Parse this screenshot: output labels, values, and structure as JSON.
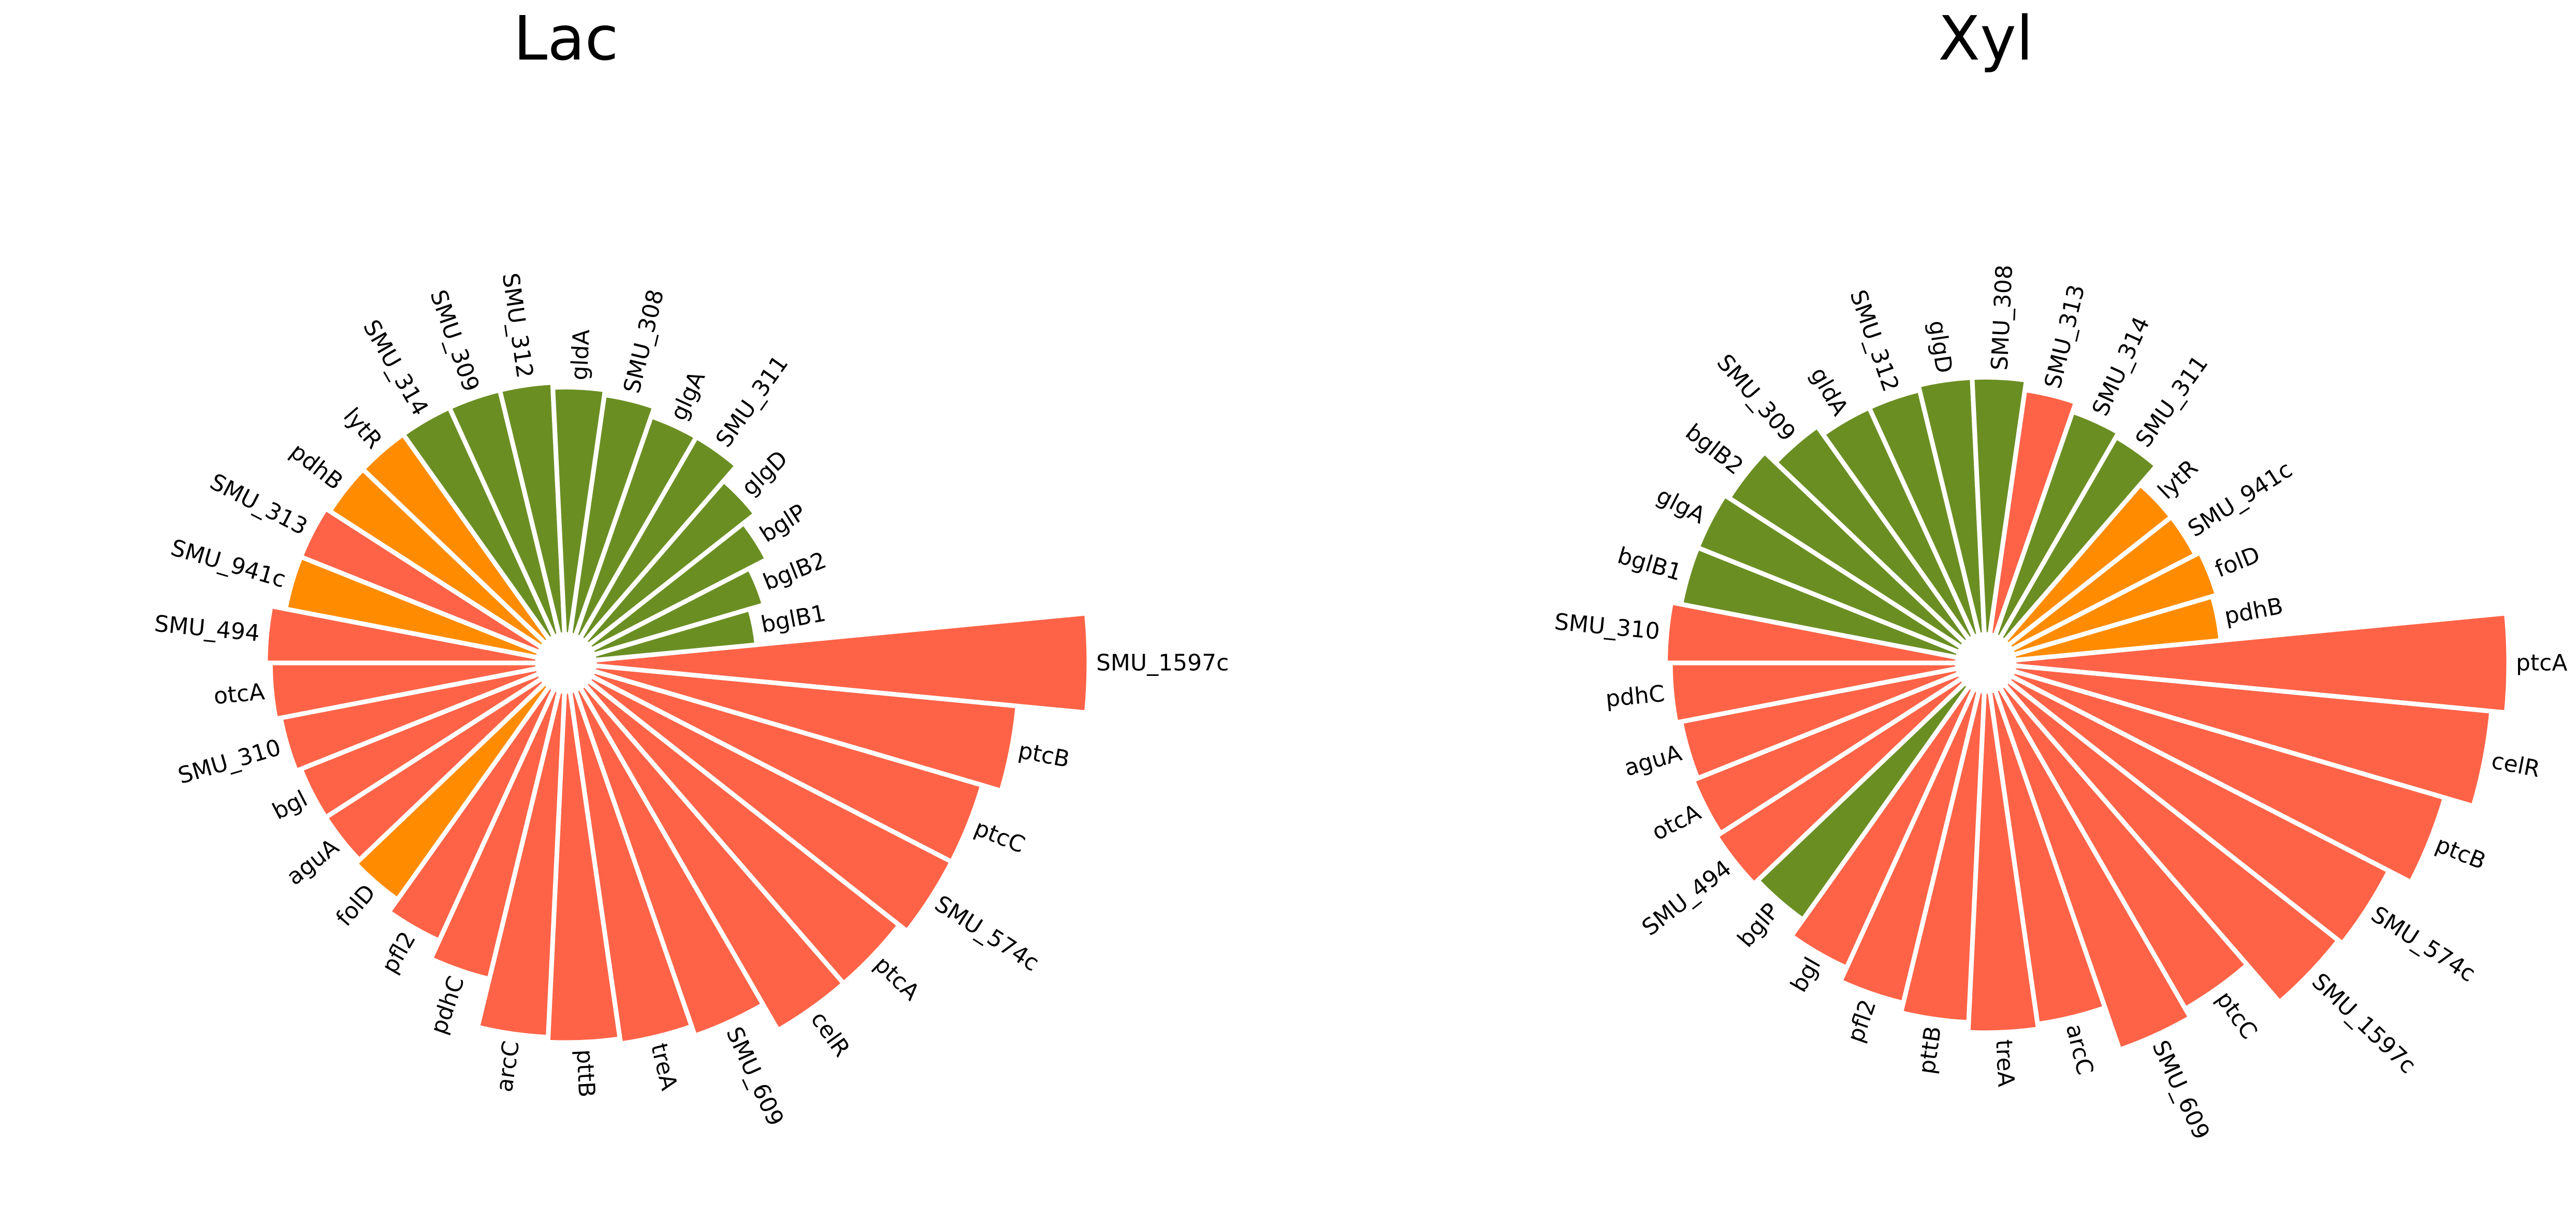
{
  "colors": {
    "red": "#FF6347",
    "orange": "#FF8C00",
    "green": "#6B8E23"
  },
  "chart_data": [
    {
      "type": "bar",
      "polar": true,
      "title": "Lac",
      "bars": [
        {
          "label": "SMU_1597c",
          "value": 1.0,
          "color": "red"
        },
        {
          "label": "ptcB",
          "value": 0.86,
          "color": "red"
        },
        {
          "label": "ptcC",
          "value": 0.82,
          "color": "red"
        },
        {
          "label": "SMU_574c",
          "value": 0.82,
          "color": "red"
        },
        {
          "label": "ptcA",
          "value": 0.8,
          "color": "red"
        },
        {
          "label": "celR",
          "value": 0.8,
          "color": "red"
        },
        {
          "label": "SMU_609",
          "value": 0.74,
          "color": "red"
        },
        {
          "label": "treA",
          "value": 0.72,
          "color": "red"
        },
        {
          "label": "pttB",
          "value": 0.71,
          "color": "red"
        },
        {
          "label": "arcC",
          "value": 0.7,
          "color": "red"
        },
        {
          "label": "pdhC",
          "value": 0.6,
          "color": "red"
        },
        {
          "label": "pfl2",
          "value": 0.56,
          "color": "red"
        },
        {
          "label": "folD",
          "value": 0.53,
          "color": "orange"
        },
        {
          "label": "aguA",
          "value": 0.52,
          "color": "red"
        },
        {
          "label": "bgl",
          "value": 0.52,
          "color": "red"
        },
        {
          "label": "SMU_310",
          "value": 0.53,
          "color": "red"
        },
        {
          "label": "otcA",
          "value": 0.54,
          "color": "red"
        },
        {
          "label": "SMU_494",
          "value": 0.55,
          "color": "red"
        },
        {
          "label": "SMU_941c",
          "value": 0.52,
          "color": "orange"
        },
        {
          "label": "SMU_313",
          "value": 0.52,
          "color": "red"
        },
        {
          "label": "pdhB",
          "value": 0.51,
          "color": "orange"
        },
        {
          "label": "lytR",
          "value": 0.51,
          "color": "orange"
        },
        {
          "label": "SMU_314",
          "value": 0.51,
          "color": "green"
        },
        {
          "label": "SMU_309",
          "value": 0.51,
          "color": "green"
        },
        {
          "label": "SMU_312",
          "value": 0.51,
          "color": "green"
        },
        {
          "label": "gldA",
          "value": 0.5,
          "color": "green"
        },
        {
          "label": "SMU_308",
          "value": 0.49,
          "color": "green"
        },
        {
          "label": "glgA",
          "value": 0.47,
          "color": "green"
        },
        {
          "label": "SMU_311",
          "value": 0.47,
          "color": "green"
        },
        {
          "label": "glgD",
          "value": 0.43,
          "color": "green"
        },
        {
          "label": "bglP",
          "value": 0.4,
          "color": "green"
        },
        {
          "label": "bglB2",
          "value": 0.36,
          "color": "green"
        },
        {
          "label": "bglB1",
          "value": 0.33,
          "color": "green"
        }
      ]
    },
    {
      "type": "bar",
      "polar": true,
      "title": "Xyl",
      "bars": [
        {
          "label": "ptcA",
          "value": 1.0,
          "color": "red"
        },
        {
          "label": "celR",
          "value": 0.97,
          "color": "red"
        },
        {
          "label": "ptcB",
          "value": 0.91,
          "color": "red"
        },
        {
          "label": "SMU_574c",
          "value": 0.86,
          "color": "red"
        },
        {
          "label": "SMU_1597c",
          "value": 0.85,
          "color": "red"
        },
        {
          "label": "ptcC",
          "value": 0.75,
          "color": "red"
        },
        {
          "label": "SMU_609",
          "value": 0.77,
          "color": "red"
        },
        {
          "label": "arcC",
          "value": 0.68,
          "color": "red"
        },
        {
          "label": "treA",
          "value": 0.69,
          "color": "red"
        },
        {
          "label": "pttB",
          "value": 0.67,
          "color": "red"
        },
        {
          "label": "pfl2",
          "value": 0.65,
          "color": "red"
        },
        {
          "label": "bgl",
          "value": 0.62,
          "color": "red"
        },
        {
          "label": "bglP",
          "value": 0.58,
          "color": "green"
        },
        {
          "label": "SMU_494",
          "value": 0.59,
          "color": "red"
        },
        {
          "label": "otcA",
          "value": 0.58,
          "color": "red"
        },
        {
          "label": "aguA",
          "value": 0.57,
          "color": "red"
        },
        {
          "label": "pdhC",
          "value": 0.58,
          "color": "red"
        },
        {
          "label": "SMU_310",
          "value": 0.59,
          "color": "red"
        },
        {
          "label": "bglB1",
          "value": 0.57,
          "color": "green"
        },
        {
          "label": "glgA",
          "value": 0.57,
          "color": "green"
        },
        {
          "label": "bglB2",
          "value": 0.56,
          "color": "green"
        },
        {
          "label": "SMU_309",
          "value": 0.53,
          "color": "green"
        },
        {
          "label": "gldA",
          "value": 0.51,
          "color": "green"
        },
        {
          "label": "SMU_312",
          "value": 0.51,
          "color": "green"
        },
        {
          "label": "glgD",
          "value": 0.52,
          "color": "green"
        },
        {
          "label": "SMU_308",
          "value": 0.52,
          "color": "green"
        },
        {
          "label": "SMU_313",
          "value": 0.5,
          "color": "red"
        },
        {
          "label": "SMU_314",
          "value": 0.48,
          "color": "green"
        },
        {
          "label": "SMU_311",
          "value": 0.47,
          "color": "green"
        },
        {
          "label": "lytR",
          "value": 0.42,
          "color": "orange"
        },
        {
          "label": "SMU_941c",
          "value": 0.42,
          "color": "orange"
        },
        {
          "label": "folD",
          "value": 0.43,
          "color": "orange"
        },
        {
          "label": "pdhB",
          "value": 0.42,
          "color": "orange"
        }
      ]
    }
  ]
}
